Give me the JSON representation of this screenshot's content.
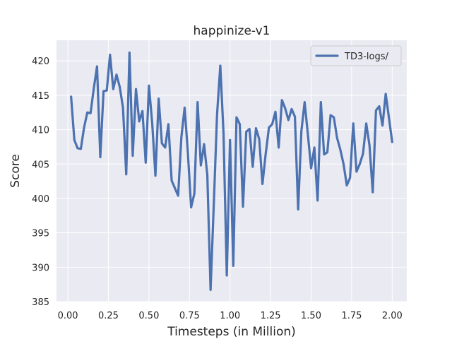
{
  "chart_data": {
    "type": "line",
    "title": "happinize-v1",
    "xlabel": "Timesteps (in Million)",
    "ylabel": "Score",
    "xlim": [
      -0.07,
      2.09
    ],
    "ylim": [
      385,
      423
    ],
    "xticks": [
      0.0,
      0.25,
      0.5,
      0.75,
      1.0,
      1.25,
      1.5,
      1.75,
      2.0
    ],
    "xtick_labels": [
      "0.00",
      "0.25",
      "0.50",
      "0.75",
      "1.00",
      "1.25",
      "1.50",
      "1.75",
      "2.00"
    ],
    "yticks": [
      385,
      390,
      395,
      400,
      405,
      410,
      415,
      420
    ],
    "ytick_labels": [
      "385",
      "390",
      "395",
      "400",
      "405",
      "410",
      "415",
      "420"
    ],
    "grid": true,
    "legend_position": "top-right",
    "series_color": "#4c72b0",
    "series": [
      {
        "name": "TD3-logs/",
        "x": [
          0.02,
          0.04,
          0.06,
          0.08,
          0.1,
          0.12,
          0.14,
          0.16,
          0.18,
          0.2,
          0.22,
          0.24,
          0.26,
          0.28,
          0.3,
          0.32,
          0.34,
          0.36,
          0.38,
          0.4,
          0.42,
          0.44,
          0.46,
          0.48,
          0.5,
          0.52,
          0.54,
          0.56,
          0.58,
          0.6,
          0.62,
          0.64,
          0.66,
          0.68,
          0.7,
          0.72,
          0.74,
          0.76,
          0.78,
          0.8,
          0.82,
          0.84,
          0.86,
          0.88,
          0.9,
          0.92,
          0.94,
          0.96,
          0.98,
          1.0,
          1.02,
          1.04,
          1.06,
          1.08,
          1.1,
          1.12,
          1.14,
          1.16,
          1.18,
          1.2,
          1.22,
          1.24,
          1.26,
          1.28,
          1.3,
          1.32,
          1.34,
          1.36,
          1.38,
          1.4,
          1.42,
          1.44,
          1.46,
          1.48,
          1.5,
          1.52,
          1.54,
          1.56,
          1.58,
          1.6,
          1.62,
          1.64,
          1.66,
          1.68,
          1.7,
          1.72,
          1.74,
          1.76,
          1.78,
          1.8,
          1.82,
          1.84,
          1.86,
          1.88,
          1.9,
          1.92,
          1.94,
          1.96,
          1.98,
          2.0
        ],
        "y": [
          414.8,
          408.5,
          407.3,
          407.2,
          410.3,
          412.5,
          412.4,
          416.0,
          419.2,
          406.0,
          415.6,
          415.7,
          420.9,
          415.9,
          418.0,
          416.2,
          413.2,
          403.5,
          421.2,
          406.2,
          415.9,
          411.2,
          412.7,
          405.2,
          416.4,
          411.0,
          403.3,
          414.5,
          408.0,
          407.4,
          410.8,
          402.6,
          401.5,
          400.4,
          408.9,
          413.2,
          406.7,
          398.7,
          400.7,
          414.0,
          404.8,
          407.9,
          403.4,
          386.7,
          399.2,
          412.2,
          419.3,
          409.4,
          388.8,
          408.5,
          390.2,
          411.8,
          410.8,
          398.8,
          409.7,
          410.1,
          404.6,
          410.2,
          408.6,
          402.1,
          406.5,
          410.3,
          410.8,
          412.6,
          407.4,
          414.3,
          413.1,
          411.4,
          413.0,
          411.9,
          398.4,
          409.8,
          414.0,
          409.3,
          404.4,
          407.4,
          399.7,
          414.0,
          406.4,
          406.7,
          412.1,
          411.8,
          408.8,
          407.1,
          405.0,
          401.9,
          403.0,
          410.9,
          403.9,
          405.0,
          406.5,
          410.9,
          407.7,
          400.9,
          412.8,
          413.4,
          410.6,
          415.2,
          411.7,
          408.2
        ]
      }
    ]
  }
}
